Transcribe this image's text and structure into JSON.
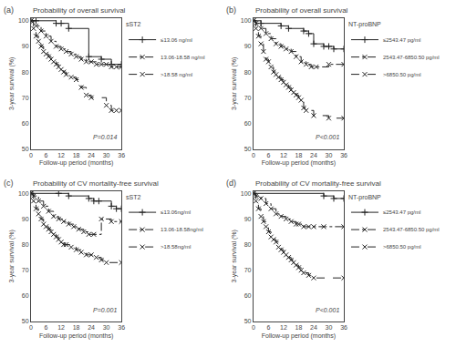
{
  "chart_data": [
    {
      "type": "step",
      "panel_label": "(a)",
      "title": "Probability of overall survival",
      "xlabel": "Follow-up period (months)",
      "ylabel": "3-year survival (%)",
      "legend_title": "sST2",
      "annotations": [
        "P=0.014"
      ],
      "xlim": [
        0,
        36
      ],
      "ylim": [
        50,
        101
      ],
      "xticks": [
        0,
        6,
        12,
        18,
        24,
        30,
        36
      ],
      "yticks": [
        50,
        60,
        70,
        80,
        90,
        100
      ],
      "grid": false,
      "legend": "right",
      "series": [
        {
          "name": "≤13.06 ng/ml",
          "color": "#222222",
          "line_style": "solid",
          "marker": "plus",
          "x": [
            0,
            2,
            10,
            12,
            15,
            23,
            28,
            32,
            36
          ],
          "values": [
            100,
            100,
            99,
            99,
            97,
            86,
            85,
            83,
            83
          ]
        },
        {
          "name": "13.06-18.58 ng/ml",
          "color": "#222222",
          "line_style": "dashdot",
          "marker": "x",
          "x": [
            0,
            2,
            4,
            6,
            8,
            10,
            12,
            14,
            16,
            18,
            20,
            22,
            24,
            26,
            28,
            30,
            32,
            34,
            36
          ],
          "values": [
            100,
            98,
            96,
            94,
            92,
            90,
            89,
            88,
            87,
            86,
            85,
            84,
            84,
            83,
            83,
            83,
            82,
            82,
            82
          ]
        },
        {
          "name": ">18.58 ng/ml",
          "color": "#222222",
          "line_style": "dash",
          "marker": "x",
          "x": [
            0,
            1,
            2,
            3,
            4,
            5,
            6,
            7,
            8,
            9,
            10,
            11,
            12,
            13,
            14,
            16,
            18,
            20,
            22,
            24,
            30,
            32,
            34,
            36
          ],
          "values": [
            100,
            97,
            94,
            92,
            90,
            88,
            87,
            86,
            85,
            84,
            83,
            82,
            81,
            80,
            79,
            78,
            77,
            74,
            71,
            70,
            67,
            65,
            65,
            65
          ]
        }
      ]
    },
    {
      "type": "step",
      "panel_label": "(b)",
      "title": "Probability of overall survival",
      "xlabel": "Follow-up period (months)",
      "ylabel": "3-year survival (%)",
      "legend_title": "NT-proBNP",
      "annotations": [
        "P<0.001"
      ],
      "xlim": [
        0,
        36
      ],
      "ylim": [
        50,
        101
      ],
      "xticks": [
        0,
        6,
        12,
        18,
        24,
        30,
        36
      ],
      "yticks": [
        50,
        60,
        70,
        80,
        90,
        100
      ],
      "grid": false,
      "legend": "right",
      "series": [
        {
          "name": "≤2543.47 pg/ml",
          "color": "#222222",
          "line_style": "solid",
          "marker": "plus",
          "x": [
            0,
            3,
            11,
            14,
            20,
            22,
            24,
            28,
            30,
            32,
            36
          ],
          "values": [
            100,
            99,
            98,
            97,
            96,
            95,
            91,
            90,
            90,
            89,
            89
          ]
        },
        {
          "name": "2543.47-6850.50 pg/ml",
          "color": "#222222",
          "line_style": "dashdot",
          "marker": "x",
          "x": [
            0,
            1,
            3,
            5,
            7,
            9,
            11,
            13,
            15,
            17,
            19,
            21,
            23,
            25,
            30,
            36
          ],
          "values": [
            100,
            99,
            97,
            95,
            93,
            91,
            90,
            89,
            88,
            86,
            84,
            83,
            82,
            82,
            83,
            83
          ]
        },
        {
          "name": ">6850.50 pg/ml",
          "color": "#222222",
          "line_style": "dash",
          "marker": "x",
          "x": [
            0,
            1,
            2,
            3,
            4,
            5,
            6,
            7,
            8,
            9,
            10,
            11,
            12,
            13,
            14,
            15,
            16,
            17,
            18,
            19,
            20,
            21,
            24,
            30,
            36
          ],
          "values": [
            100,
            97,
            94,
            91,
            88,
            85,
            84,
            82,
            80,
            79,
            78,
            77,
            76,
            75,
            74,
            73,
            72,
            71,
            70,
            69,
            66,
            65,
            63,
            62,
            62
          ]
        }
      ]
    },
    {
      "type": "step",
      "panel_label": "(c)",
      "title": "Probability of CV mortality-free survival",
      "xlabel": "Follow-up period (months)",
      "ylabel": "3-year survival (%)",
      "legend_title": "sST2",
      "annotations": [
        "P=0.001"
      ],
      "xlim": [
        0,
        36
      ],
      "ylim": [
        50,
        101
      ],
      "xticks": [
        0,
        6,
        12,
        18,
        24,
        30,
        36
      ],
      "yticks": [
        50,
        60,
        70,
        80,
        90,
        100
      ],
      "grid": false,
      "legend": "right",
      "series": [
        {
          "name": "≤13.06ng/ml",
          "color": "#222222",
          "line_style": "solid",
          "marker": "plus",
          "x": [
            0,
            11,
            15,
            23,
            25,
            27,
            32,
            34,
            36
          ],
          "values": [
            100,
            100,
            99,
            98,
            97,
            97,
            95,
            94,
            94
          ]
        },
        {
          "name": "13.06-18.58ng/ml",
          "color": "#222222",
          "line_style": "dashdot",
          "marker": "x",
          "x": [
            0,
            1,
            3,
            5,
            7,
            9,
            11,
            13,
            15,
            17,
            19,
            21,
            23,
            25,
            28,
            32,
            36
          ],
          "values": [
            100,
            99,
            97,
            95,
            93,
            91,
            90,
            89,
            88,
            87,
            86,
            85,
            84,
            84,
            90,
            89,
            89
          ]
        },
        {
          "name": ">18.58ng/ml",
          "color": "#222222",
          "line_style": "dash",
          "marker": "x",
          "x": [
            0,
            1,
            2,
            3,
            4,
            5,
            6,
            7,
            8,
            9,
            10,
            11,
            12,
            13,
            14,
            16,
            18,
            20,
            22,
            24,
            26,
            28,
            30,
            36
          ],
          "values": [
            100,
            97,
            94,
            92,
            90,
            88,
            87,
            86,
            85,
            84,
            83,
            82,
            81,
            80,
            80,
            79,
            78,
            77,
            76,
            76,
            75,
            74,
            73,
            73
          ]
        }
      ]
    },
    {
      "type": "step",
      "panel_label": "(d)",
      "title": "Probability of CV mortality-free survival",
      "xlabel": "Follow-up period (months)",
      "ylabel": "3-year survival (%)",
      "legend_title": "NT-proBNP",
      "annotations": [
        "P<0.001"
      ],
      "xlim": [
        0,
        36
      ],
      "ylim": [
        50,
        101
      ],
      "xticks": [
        0,
        6,
        12,
        18,
        24,
        30,
        36
      ],
      "yticks": [
        50,
        60,
        70,
        80,
        90,
        100
      ],
      "grid": false,
      "legend": "right",
      "series": [
        {
          "name": "≤2543.47 pg/ml",
          "color": "#222222",
          "line_style": "solid",
          "marker": "plus",
          "x": [
            0,
            28,
            32,
            36
          ],
          "values": [
            100,
            99,
            98,
            98
          ]
        },
        {
          "name": "2543.47-6850.50 pg/ml",
          "color": "#222222",
          "line_style": "dashdot",
          "marker": "x",
          "x": [
            0,
            1,
            3,
            5,
            7,
            9,
            11,
            13,
            15,
            17,
            18,
            20,
            22,
            24,
            28,
            36
          ],
          "values": [
            100,
            99,
            98,
            96,
            94,
            92,
            91,
            90,
            89,
            88,
            88,
            87,
            87,
            87,
            87,
            87
          ]
        },
        {
          "name": ">6850.50 pg/ml",
          "color": "#222222",
          "line_style": "dash",
          "marker": "x",
          "x": [
            0,
            1,
            2,
            3,
            4,
            5,
            6,
            7,
            8,
            9,
            10,
            11,
            12,
            13,
            14,
            15,
            16,
            17,
            18,
            19,
            20,
            22,
            24,
            36
          ],
          "values": [
            100,
            97,
            94,
            91,
            89,
            87,
            85,
            83,
            82,
            81,
            79,
            78,
            77,
            76,
            75,
            74,
            73,
            72,
            71,
            70,
            69,
            68,
            67,
            67
          ]
        }
      ]
    }
  ]
}
